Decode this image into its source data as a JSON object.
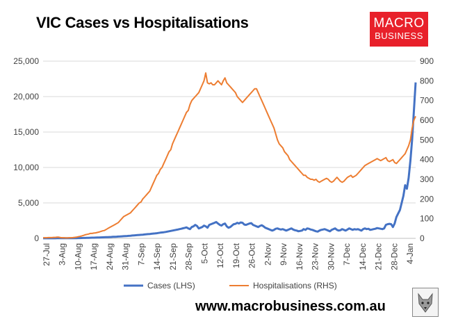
{
  "header": {
    "title": "VIC Cases vs Hospitalisations"
  },
  "logo": {
    "line1": "MACRO",
    "line2": "BUSINESS"
  },
  "footer": {
    "url": "www.macrobusiness.com.au"
  },
  "colors": {
    "cases": "#4472c4",
    "hospitalisations": "#ed7d31",
    "logo_red": "#e8202a",
    "grid": "#d9d9d9"
  },
  "chart_data": {
    "type": "line",
    "title": "VIC Cases vs Hospitalisations",
    "x_tick_labels": [
      "27-Jul",
      "3-Aug",
      "10-Aug",
      "17-Aug",
      "24-Aug",
      "31-Aug",
      "7-Sep",
      "14-Sep",
      "21-Sep",
      "28-Sep",
      "5-Oct",
      "12-Oct",
      "19-Oct",
      "26-Oct",
      "2-Nov",
      "9-Nov",
      "16-Nov",
      "23-Nov",
      "30-Nov",
      "7-Dec",
      "14-Dec",
      "21-Dec",
      "28-Dec",
      "4-Jan"
    ],
    "y_left": {
      "label": "",
      "ylim": [
        0,
        25000
      ],
      "ticks": [
        "0",
        "5,000",
        "10,000",
        "15,000",
        "20,000",
        "25,000"
      ]
    },
    "y_right": {
      "label": "",
      "ylim": [
        0,
        900
      ],
      "ticks": [
        "0",
        "100",
        "200",
        "300",
        "400",
        "500",
        "600",
        "700",
        "800",
        "900"
      ]
    },
    "grid": "horizontal",
    "legend": "bottom",
    "series": [
      {
        "name": "Cases (LHS)",
        "axis": "left",
        "color": "#4472c4",
        "values": [
          5,
          5,
          5,
          5,
          5,
          5,
          10,
          10,
          15,
          15,
          20,
          20,
          20,
          25,
          25,
          25,
          30,
          30,
          30,
          30,
          40,
          40,
          50,
          60,
          60,
          70,
          80,
          90,
          100,
          100,
          110,
          120,
          130,
          140,
          150,
          160,
          170,
          180,
          190,
          200,
          220,
          230,
          240,
          250,
          260,
          280,
          300,
          320,
          330,
          350,
          370,
          400,
          420,
          440,
          460,
          480,
          500,
          520,
          550,
          580,
          600,
          620,
          650,
          680,
          700,
          730,
          760,
          800,
          830,
          860,
          900,
          950,
          1000,
          1050,
          1100,
          1150,
          1200,
          1250,
          1300,
          1350,
          1420,
          1480,
          1550,
          1400,
          1300,
          1600,
          1700,
          1900,
          1750,
          1400,
          1500,
          1600,
          1800,
          1700,
          1500,
          1900,
          2000,
          2100,
          2200,
          2300,
          2100,
          1900,
          1800,
          2000,
          2100,
          1700,
          1500,
          1600,
          1800,
          2000,
          2050,
          2200,
          2100,
          2250,
          2200,
          1950,
          1900,
          2000,
          2100,
          2150,
          1900,
          1800,
          1700,
          1600,
          1750,
          1850,
          1700,
          1500,
          1400,
          1300,
          1200,
          1100,
          1200,
          1350,
          1400,
          1300,
          1250,
          1300,
          1200,
          1100,
          1200,
          1300,
          1400,
          1250,
          1150,
          1100,
          1000,
          1050,
          1100,
          1300,
          1200,
          1400,
          1350,
          1250,
          1200,
          1100,
          1000,
          950,
          1100,
          1200,
          1250,
          1300,
          1200,
          1100,
          1000,
          1200,
          1300,
          1400,
          1200,
          1100,
          1150,
          1300,
          1200,
          1100,
          1250,
          1400,
          1300,
          1200,
          1300,
          1250,
          1300,
          1200,
          1100,
          1300,
          1400,
          1300,
          1350,
          1200,
          1250,
          1300,
          1350,
          1450,
          1400,
          1350,
          1300,
          1400,
          1900,
          2000,
          2050,
          2000,
          1600,
          2100,
          3000,
          3500,
          4000,
          5000,
          6000,
          7500,
          7000,
          8500,
          11000,
          14000,
          18000,
          22000
        ]
      },
      {
        "name": "Hospitalisations (RHS)",
        "axis": "right",
        "color": "#ed7d31",
        "values": [
          3,
          3,
          3,
          4,
          4,
          4,
          5,
          5,
          6,
          6,
          4,
          3,
          3,
          2,
          2,
          3,
          3,
          4,
          5,
          6,
          8,
          10,
          12,
          15,
          18,
          20,
          22,
          25,
          25,
          27,
          28,
          30,
          32,
          35,
          38,
          40,
          45,
          50,
          55,
          60,
          65,
          70,
          75,
          80,
          90,
          100,
          110,
          115,
          120,
          125,
          130,
          140,
          150,
          160,
          170,
          180,
          185,
          200,
          210,
          220,
          230,
          240,
          260,
          280,
          300,
          320,
          330,
          350,
          360,
          380,
          400,
          420,
          440,
          450,
          480,
          500,
          520,
          540,
          560,
          580,
          600,
          620,
          640,
          650,
          680,
          700,
          710,
          720,
          730,
          740,
          760,
          780,
          800,
          840,
          790,
          785,
          790,
          780,
          780,
          790,
          800,
          790,
          780,
          800,
          815,
          790,
          780,
          770,
          760,
          750,
          740,
          720,
          710,
          700,
          690,
          700,
          710,
          720,
          730,
          740,
          750,
          760,
          760,
          740,
          720,
          700,
          680,
          660,
          640,
          620,
          600,
          580,
          560,
          530,
          500,
          480,
          470,
          460,
          440,
          430,
          420,
          400,
          390,
          380,
          370,
          360,
          350,
          340,
          330,
          320,
          320,
          310,
          305,
          300,
          300,
          295,
          300,
          290,
          285,
          290,
          295,
          300,
          305,
          300,
          290,
          285,
          290,
          300,
          310,
          300,
          290,
          285,
          290,
          300,
          310,
          315,
          320,
          310,
          315,
          320,
          330,
          340,
          350,
          360,
          370,
          375,
          380,
          385,
          390,
          395,
          400,
          405,
          400,
          395,
          400,
          405,
          410,
          395,
          390,
          395,
          400,
          385,
          380,
          390,
          400,
          410,
          420,
          430,
          450,
          470,
          500,
          560,
          600,
          620
        ]
      }
    ]
  }
}
